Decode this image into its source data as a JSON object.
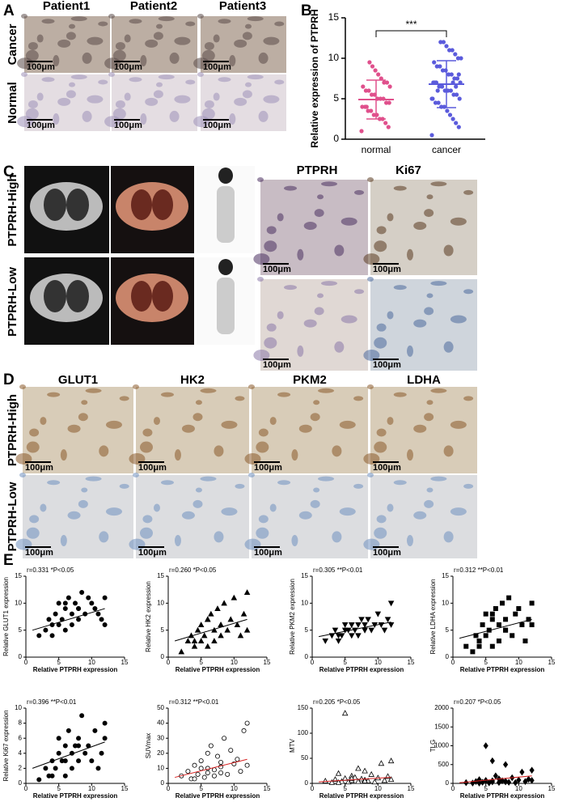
{
  "panel_labels": [
    "A",
    "B",
    "C",
    "D",
    "E"
  ],
  "scale_bar": "100μm",
  "panel_a": {
    "columns": [
      "Patient1",
      "Patient2",
      "Patient3"
    ],
    "rows": [
      "Cancer",
      "Normal"
    ]
  },
  "panel_c": {
    "columns": [
      "PTPRH",
      "Ki67"
    ],
    "rows": [
      "PTPRH-High",
      "PTPRH-Low"
    ]
  },
  "panel_d": {
    "columns": [
      "GLUT1",
      "HK2",
      "PKM2",
      "LDHA"
    ],
    "rows": [
      "PTPRH-High",
      "PTPRH-Low"
    ]
  },
  "chart_data": [
    {
      "type": "dot",
      "ylabel": "Relative expression of PTPRH",
      "categories": [
        "normal",
        "cancer"
      ],
      "values": [
        [
          1,
          1.5,
          2,
          2.5,
          2.5,
          3,
          3,
          3.5,
          3.5,
          4,
          4,
          4.5,
          4.5,
          5,
          5,
          5,
          5.5,
          5.5,
          6,
          6,
          6.5,
          6.5,
          7,
          7,
          7.5,
          8,
          8.5,
          9,
          9.5,
          4
        ],
        [
          0.5,
          1.5,
          2,
          2.5,
          3,
          3.5,
          4,
          4,
          4.5,
          4.5,
          5,
          5,
          5.5,
          5.5,
          6,
          6,
          6,
          6.5,
          6.5,
          7,
          7,
          7,
          7.5,
          7.5,
          8,
          8,
          8.5,
          8.5,
          9,
          9,
          9.5,
          10,
          10,
          10.5,
          11,
          11,
          11.5,
          12,
          12,
          6,
          7,
          5,
          8,
          6.5,
          7
        ]
      ],
      "means": [
        4.9,
        6.8
      ],
      "errors": [
        2.4,
        2.9
      ],
      "colors": [
        "#e0508c",
        "#5b5bdc"
      ],
      "annotation": "***",
      "ylim": [
        0,
        15
      ],
      "yticks": [
        0,
        5,
        10,
        15
      ]
    },
    {
      "type": "scatter",
      "annotation": "r=0.331  *P<0.05",
      "xlabel": "Relative PTPRH  expression",
      "ylabel": "Relative GLUT1  expression",
      "marker": "circle",
      "color": "#000000",
      "fit_color": "#000000",
      "x": [
        2,
        3,
        3.5,
        4,
        4.5,
        5,
        5,
        5.5,
        6,
        6,
        6.5,
        7,
        7,
        7.5,
        8,
        8,
        8.5,
        9,
        9.5,
        10,
        10.5,
        11,
        11.5,
        12,
        12,
        4,
        6,
        8
      ],
      "values": [
        4,
        5,
        7,
        6,
        8,
        6,
        10,
        7,
        9,
        5,
        11,
        8,
        6,
        10,
        9,
        7,
        12,
        8,
        11,
        10,
        9,
        8,
        7,
        11,
        6,
        4,
        10,
        9
      ],
      "fit_x": [
        1,
        12
      ],
      "fit": [
        5,
        9
      ],
      "xlim": [
        0,
        15
      ],
      "xticks": [
        0,
        5,
        10,
        15
      ],
      "ylim": [
        0,
        15
      ],
      "yticks": [
        0,
        5,
        10,
        15
      ]
    },
    {
      "type": "scatter",
      "annotation": "r=0.260  *P<0.05",
      "xlabel": "Relative PTPRH  expression",
      "ylabel": "Relative HK2  expression",
      "marker": "triangle",
      "color": "#000000",
      "fit_color": "#000000",
      "x": [
        2,
        3,
        3.5,
        4,
        4.5,
        5,
        5,
        5.5,
        6,
        6,
        6.5,
        7,
        7,
        7.5,
        8,
        8,
        8.5,
        9,
        9.5,
        10,
        10.5,
        11,
        11.5,
        12,
        12,
        4,
        6,
        8
      ],
      "values": [
        1,
        3,
        4,
        2,
        5,
        3,
        6,
        4,
        7,
        2,
        8,
        5,
        3,
        9,
        4,
        6,
        10,
        5,
        7,
        11,
        6,
        4,
        8,
        12,
        5,
        3,
        7,
        6
      ],
      "fit_x": [
        1,
        12
      ],
      "fit": [
        3,
        7
      ],
      "xlim": [
        0,
        15
      ],
      "xticks": [
        0,
        5,
        10,
        15
      ],
      "ylim": [
        0,
        15
      ],
      "yticks": [
        0,
        5,
        10,
        15
      ]
    },
    {
      "type": "scatter",
      "annotation": "r=0.305  **P<0.01",
      "xlabel": "Relative PTPRH  expression",
      "ylabel": "Relative PKM2  expression",
      "marker": "triangle-down",
      "color": "#000000",
      "fit_color": "#000000",
      "x": [
        2,
        3,
        3.5,
        4,
        4.5,
        5,
        5,
        5.5,
        6,
        6,
        6.5,
        7,
        7,
        7.5,
        8,
        8,
        8.5,
        9,
        9.5,
        10,
        10.5,
        11,
        11.5,
        12,
        12,
        4,
        6,
        8
      ],
      "values": [
        3,
        4,
        5,
        4,
        4,
        5,
        6,
        5,
        6,
        4,
        5,
        6,
        4,
        7,
        5,
        6,
        7,
        5,
        6,
        8,
        6,
        5,
        7,
        10,
        6,
        3,
        6,
        5
      ],
      "fit_x": [
        1,
        12
      ],
      "fit": [
        3.8,
        6.5
      ],
      "xlim": [
        0,
        15
      ],
      "xticks": [
        0,
        5,
        10,
        15
      ],
      "ylim": [
        0,
        15
      ],
      "yticks": [
        0,
        5,
        10,
        15
      ]
    },
    {
      "type": "scatter",
      "annotation": "r=0.312  **P<0.01",
      "xlabel": "Relative PTPRH  expression",
      "ylabel": "Relative LDHA  expression",
      "marker": "square",
      "color": "#000000",
      "fit_color": "#000000",
      "x": [
        2,
        3,
        3.5,
        4,
        4.5,
        5,
        5,
        5.5,
        6,
        6,
        6.5,
        7,
        7,
        7.5,
        8,
        8,
        8.5,
        9,
        9.5,
        10,
        10.5,
        11,
        11.5,
        12,
        12,
        4,
        6,
        8
      ],
      "values": [
        2,
        1,
        4,
        3,
        6,
        4,
        8,
        5,
        7,
        2,
        9,
        6,
        3,
        10,
        5,
        7,
        11,
        4,
        8,
        9,
        6,
        3,
        7,
        10,
        6,
        2,
        8,
        5
      ],
      "fit_x": [
        1,
        12
      ],
      "fit": [
        3.5,
        7
      ],
      "xlim": [
        0,
        15
      ],
      "xticks": [
        0,
        5,
        10,
        15
      ],
      "ylim": [
        0,
        15
      ],
      "yticks": [
        0,
        5,
        10,
        15
      ]
    },
    {
      "type": "scatter",
      "annotation": "r=0.396  **P<0.01",
      "xlabel": "Relative PTPRH  expression",
      "ylabel": "Relative Ki67  expression",
      "marker": "circle",
      "color": "#000000",
      "fit_color": "#000000",
      "x": [
        2,
        3,
        3.5,
        4,
        4.5,
        5,
        5,
        5.5,
        6,
        6,
        6.5,
        7,
        7,
        7.5,
        8,
        8,
        8.5,
        9,
        9.5,
        10,
        10.5,
        11,
        11.5,
        12,
        12,
        4,
        6,
        8
      ],
      "values": [
        0.5,
        2,
        1,
        3,
        2,
        4,
        6,
        3,
        5,
        1,
        7,
        4,
        2,
        5,
        3,
        6,
        9,
        4,
        5,
        3,
        7,
        2,
        4,
        8,
        6,
        1,
        3,
        5
      ],
      "fit_x": [
        1,
        12
      ],
      "fit": [
        2,
        5.5
      ],
      "xlim": [
        0,
        15
      ],
      "xticks": [
        0,
        5,
        10,
        15
      ],
      "ylim": [
        0,
        10
      ],
      "yticks": [
        0,
        2,
        4,
        6,
        8,
        10
      ]
    },
    {
      "type": "scatter",
      "annotation": "r=0.312  **P<0.01",
      "xlabel": "Relative PTPRH  expression",
      "ylabel": "SUVmax",
      "marker": "circle-open",
      "color": "#000000",
      "fit_color": "#d62020",
      "x": [
        2,
        3,
        3.5,
        4,
        4.5,
        5,
        5,
        5.5,
        6,
        6,
        6.5,
        7,
        7,
        7.5,
        8,
        8,
        8.5,
        9,
        9.5,
        10,
        10.5,
        11,
        11.5,
        12,
        12,
        4,
        6,
        8
      ],
      "values": [
        5,
        8,
        3,
        12,
        6,
        10,
        15,
        4,
        20,
        7,
        25,
        9,
        5,
        18,
        11,
        14,
        30,
        6,
        22,
        13,
        16,
        8,
        35,
        40,
        12,
        3,
        10,
        7
      ],
      "fit_x": [
        1,
        12
      ],
      "fit": [
        4,
        16
      ],
      "xlim": [
        0,
        15
      ],
      "xticks": [
        0,
        5,
        10,
        15
      ],
      "ylim": [
        0,
        50
      ],
      "yticks": [
        0,
        10,
        20,
        30,
        40,
        50
      ]
    },
    {
      "type": "scatter",
      "annotation": "r=0.205  *P<0.05",
      "xlabel": "Relative PTPRH  expression",
      "ylabel": "MTV",
      "marker": "triangle-open",
      "color": "#000000",
      "fit_color": "#d62020",
      "x": [
        2,
        3,
        3.5,
        4,
        4.5,
        5,
        5,
        5.5,
        6,
        6,
        6.5,
        7,
        7,
        7.5,
        8,
        8,
        8.5,
        9,
        9.5,
        10,
        10.5,
        11,
        11.5,
        12,
        12,
        4,
        6,
        8
      ],
      "values": [
        5,
        2,
        8,
        20,
        4,
        10,
        140,
        3,
        15,
        6,
        12,
        30,
        4,
        9,
        25,
        7,
        5,
        18,
        3,
        11,
        40,
        6,
        14,
        8,
        45,
        2,
        10,
        5
      ],
      "fit_x": [
        1,
        12
      ],
      "fit": [
        3,
        12
      ],
      "xlim": [
        0,
        15
      ],
      "xticks": [
        0,
        5,
        10,
        15
      ],
      "ylim": [
        0,
        150
      ],
      "yticks": [
        0,
        50,
        100,
        150
      ]
    },
    {
      "type": "scatter",
      "annotation": "r=0.207  *P<0.05",
      "xlabel": "Relative PTPRH  expression",
      "ylabel": "TLG",
      "marker": "diamond",
      "color": "#000000",
      "fit_color": "#d62020",
      "x": [
        2,
        3,
        3.5,
        4,
        4.5,
        5,
        5,
        5.5,
        6,
        6,
        6.5,
        7,
        7,
        7.5,
        8,
        8,
        8.5,
        9,
        9.5,
        10,
        10.5,
        11,
        11.5,
        12,
        12,
        4,
        6,
        8
      ],
      "values": [
        20,
        10,
        50,
        100,
        30,
        80,
        1000,
        15,
        600,
        40,
        200,
        120,
        25,
        70,
        500,
        60,
        30,
        150,
        20,
        90,
        300,
        50,
        110,
        80,
        350,
        10,
        70,
        40
      ],
      "fit_x": [
        1,
        12
      ],
      "fit": [
        20,
        200
      ],
      "xlim": [
        0,
        15
      ],
      "xticks": [
        0,
        5,
        10,
        15
      ],
      "ylim": [
        0,
        2000
      ],
      "yticks": [
        0,
        500,
        1000,
        1500,
        2000
      ]
    }
  ]
}
